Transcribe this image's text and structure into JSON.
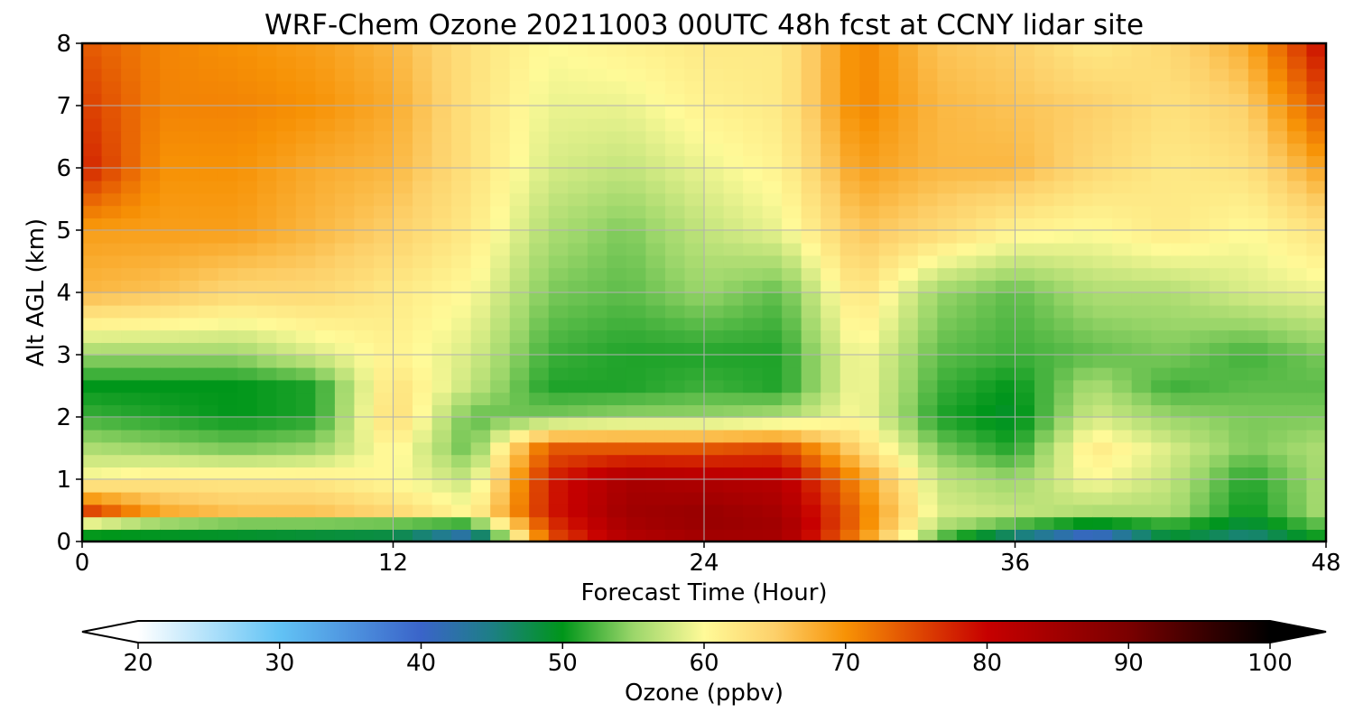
{
  "chart_data": {
    "type": "heatmap",
    "title": "WRF-Chem Ozone  20211003 00UTC 48h fcst at CCNY lidar site",
    "xlabel": "Forecast Time (Hour)",
    "ylabel": "Alt AGL (km)",
    "xlim": [
      0,
      48
    ],
    "ylim": [
      0,
      8
    ],
    "xticks": [
      0,
      12,
      24,
      36,
      48
    ],
    "yticks": [
      0,
      1,
      2,
      3,
      4,
      5,
      6,
      7,
      8
    ],
    "grid": true,
    "colorbar": {
      "label": "Ozone  (ppbv)",
      "min": 20,
      "max": 100,
      "ticks": [
        20,
        30,
        40,
        50,
        60,
        70,
        80,
        90,
        100
      ],
      "extend": "both",
      "stops": [
        {
          "v": 20,
          "c": "#ffffff"
        },
        {
          "v": 30,
          "c": "#62c3f5"
        },
        {
          "v": 40,
          "c": "#3a64c9"
        },
        {
          "v": 45,
          "c": "#1d7f85"
        },
        {
          "v": 50,
          "c": "#00961a"
        },
        {
          "v": 55,
          "c": "#9bd66a"
        },
        {
          "v": 60,
          "c": "#fffa98"
        },
        {
          "v": 65,
          "c": "#fdd06a"
        },
        {
          "v": 70,
          "c": "#f79205"
        },
        {
          "v": 80,
          "c": "#c70000"
        },
        {
          "v": 90,
          "c": "#7a0000"
        },
        {
          "v": 100,
          "c": "#000000"
        }
      ]
    },
    "x": [
      0,
      3,
      6,
      9,
      12,
      15,
      18,
      21,
      24,
      27,
      30,
      33,
      36,
      39,
      42,
      45,
      48
    ],
    "y": [
      0,
      0.25,
      0.5,
      1,
      1.5,
      2,
      2.5,
      3,
      4,
      5,
      6,
      7,
      8
    ],
    "z": [
      [
        47,
        48,
        48,
        47,
        46,
        37,
        74,
        82,
        84,
        84,
        70,
        52,
        42,
        35,
        48,
        44,
        50
      ],
      [
        55,
        52,
        51,
        51,
        51,
        50,
        76,
        84,
        86,
        85,
        72,
        56,
        52,
        48,
        51,
        48,
        53
      ],
      [
        76,
        68,
        66,
        66,
        64,
        60,
        78,
        85,
        86,
        84,
        72,
        58,
        57,
        56,
        56,
        50,
        56
      ],
      [
        60,
        62,
        62,
        62,
        60,
        57,
        78,
        84,
        83,
        82,
        70,
        57,
        55,
        60,
        57,
        51,
        56
      ],
      [
        56,
        55,
        54,
        55,
        61,
        53,
        74,
        74,
        74,
        75,
        64,
        54,
        51,
        62,
        58,
        54,
        56
      ],
      [
        52,
        51,
        50,
        51,
        64,
        53,
        54,
        55,
        55,
        56,
        60,
        51,
        49,
        58,
        55,
        54,
        54
      ],
      [
        50,
        50,
        50,
        51,
        63,
        57,
        51,
        51,
        52,
        51,
        60,
        52,
        50,
        56,
        52,
        53,
        53
      ],
      [
        55,
        55,
        55,
        58,
        61,
        58,
        52,
        51,
        51,
        51,
        60,
        53,
        52,
        53,
        54,
        52,
        54
      ],
      [
        67,
        66,
        64,
        64,
        62,
        60,
        54,
        53,
        55,
        53,
        63,
        55,
        53,
        56,
        56,
        58,
        59
      ],
      [
        69,
        69,
        69,
        67,
        65,
        62,
        56,
        54,
        57,
        59,
        66,
        64,
        61,
        60,
        62,
        60,
        63
      ],
      [
        78,
        70,
        70,
        68,
        67,
        63,
        58,
        57,
        59,
        61,
        69,
        67,
        67,
        64,
        62,
        63,
        69
      ],
      [
        76,
        71,
        71,
        70,
        68,
        63,
        59,
        59,
        61,
        62,
        71,
        67,
        66,
        65,
        63,
        65,
        75
      ],
      [
        74,
        71,
        70,
        69,
        67,
        63,
        60,
        61,
        62,
        62,
        71,
        66,
        65,
        62,
        64,
        68,
        80
      ]
    ]
  }
}
